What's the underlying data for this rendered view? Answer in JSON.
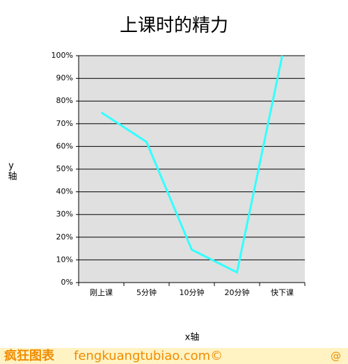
{
  "chart_data": {
    "type": "line",
    "title": "上课时的精力",
    "x_label": "x轴",
    "y_label": "y轴",
    "categories": [
      "刚上课",
      "5分钟",
      "10分钟",
      "20分钟",
      "快下课"
    ],
    "series": [
      {
        "color": "#33ffff",
        "values": [
          75,
          62,
          14.5,
          4.5,
          100
        ]
      }
    ],
    "ylim": [
      0,
      100
    ],
    "yticks": [
      {
        "value": 0,
        "label": "0%"
      },
      {
        "value": 10,
        "label": "10%"
      },
      {
        "value": 20,
        "label": "20%"
      },
      {
        "value": 30,
        "label": "30%"
      },
      {
        "value": 40,
        "label": "40%"
      },
      {
        "value": 50,
        "label": "50%"
      },
      {
        "value": 60,
        "label": "60%"
      },
      {
        "value": 70,
        "label": "70%"
      },
      {
        "value": 80,
        "label": "80%"
      },
      {
        "value": 90,
        "label": "90%"
      },
      {
        "value": 100,
        "label": "100%"
      }
    ],
    "grid": true
  },
  "footer": {
    "brand": "疯狂图表",
    "site": "fengkuangtubiao.com©",
    "mark": "@"
  }
}
